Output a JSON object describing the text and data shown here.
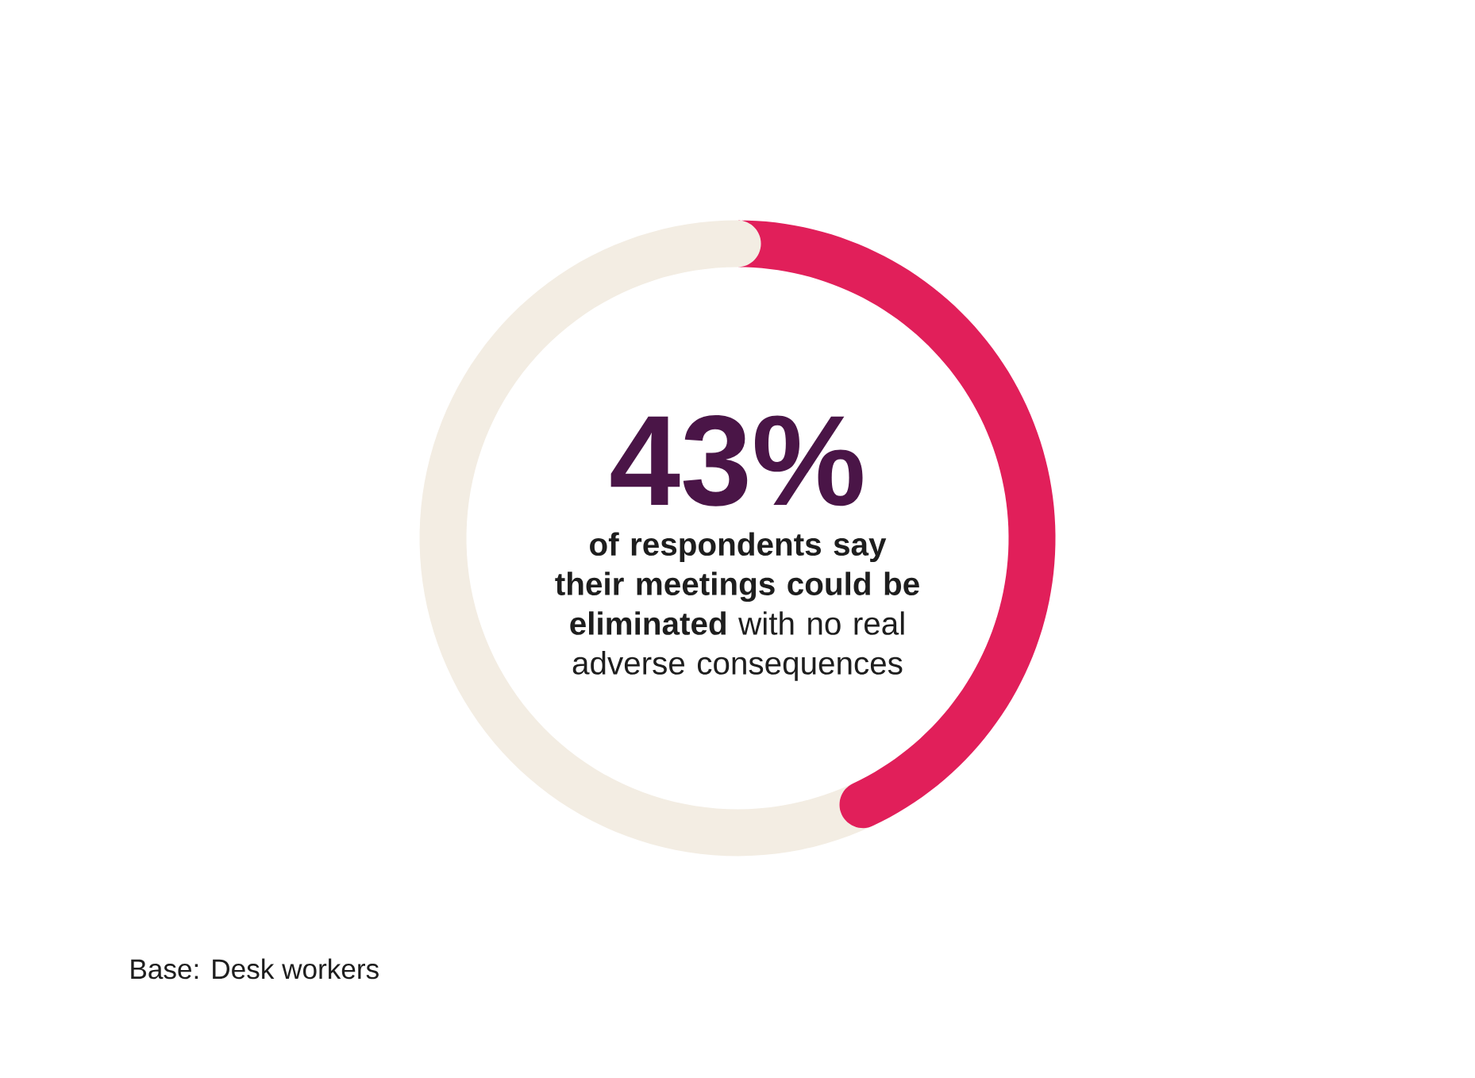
{
  "chart_data": {
    "type": "donut",
    "categories": [
      null,
      null
    ],
    "values": [
      43,
      57
    ],
    "colors": [
      "#e11f5a",
      "#f3ede3"
    ],
    "value_labels": [
      "43%",
      null
    ],
    "annotations": [
      "**of respondents say their meetings could be eliminated** with no real adverse consequences",
      "Base: Desk workers"
    ]
  }
}
